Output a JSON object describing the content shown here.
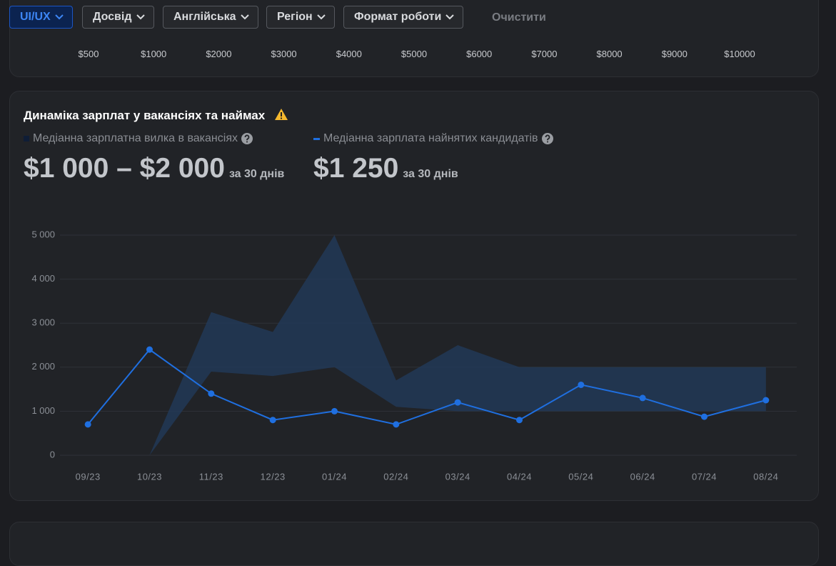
{
  "filters": {
    "items": [
      "UI/UX",
      "Досвід",
      "Англійська",
      "Регіон",
      "Формат роботи"
    ],
    "active": 0,
    "clear": "Очистити"
  },
  "salary_scale": [
    "$500",
    "$1000",
    "$2000",
    "$3000",
    "$4000",
    "$5000",
    "$6000",
    "$7000",
    "$8000",
    "$9000",
    "$10000"
  ],
  "summary": [
    {
      "value": "$1 000 – $2 000",
      "period": "за 30 днів"
    },
    {
      "value": "$1 250",
      "period": "за 30 днів"
    }
  ],
  "chart_data": {
    "type": "line",
    "title": "Динаміка зарплат у вакансіях та наймах",
    "categories": [
      "09/23",
      "10/23",
      "11/23",
      "12/23",
      "01/24",
      "02/24",
      "03/24",
      "04/24",
      "05/24",
      "06/24",
      "07/24",
      "08/24"
    ],
    "series": [
      {
        "name": "Медіанна зарплатна вилка в вакансіях",
        "color": "#0f1d36",
        "area_color": "#22395a",
        "lower": [
          null,
          0,
          1900,
          1800,
          2000,
          1100,
          1000,
          1000,
          1000,
          1000,
          1000,
          1000
        ],
        "upper": [
          null,
          0,
          3250,
          2800,
          5000,
          1700,
          2500,
          2000,
          2000,
          2000,
          2000,
          2000
        ]
      },
      {
        "name": "Медіанна зарплата найнятих кандидатів",
        "color": "#1f6fe0",
        "values": [
          700,
          2400,
          1400,
          800,
          1000,
          700,
          1200,
          800,
          1600,
          1300,
          875,
          1250
        ]
      }
    ],
    "ylim": [
      0,
      5000
    ],
    "yticks": [
      0,
      {
        "value": 1000,
        "label": "1 000"
      },
      {
        "value": 2000,
        "label": "2 000"
      },
      {
        "value": 3000,
        "label": "3 000"
      },
      {
        "value": 4000,
        "label": "4 000"
      },
      {
        "value": 5000,
        "label": "5 000"
      }
    ],
    "grid": true
  }
}
